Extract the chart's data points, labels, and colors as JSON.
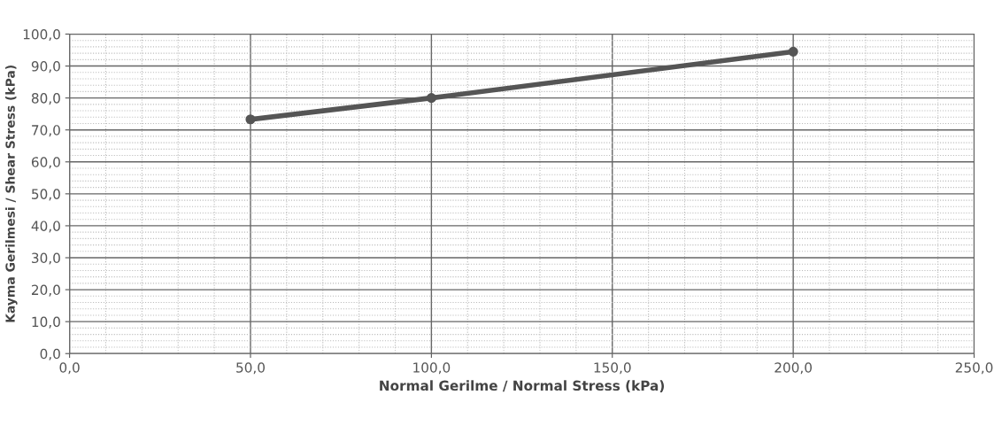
{
  "chart_data": {
    "type": "line",
    "xlabel": "Normal Gerilme / Normal Stress (kPa)",
    "ylabel": "Kayma Gerilmesi / Shear Stress (kPa)",
    "x": [
      50,
      100,
      200
    ],
    "series": [
      {
        "color": "#555555",
        "values": [
          73.3,
          80.0,
          94.5
        ]
      }
    ],
    "marker": "circle",
    "line_style": "solid",
    "grid": true,
    "xlim": [
      0,
      250
    ],
    "xticks": [
      {
        "value": 0,
        "label": "0,0"
      },
      {
        "value": 50,
        "label": "50,0"
      },
      {
        "value": 100,
        "label": "100,0"
      },
      {
        "value": 150,
        "label": "150,0"
      },
      {
        "value": 200,
        "label": "200,0"
      },
      {
        "value": 250,
        "label": "250,0"
      }
    ],
    "ylim": [
      0,
      100
    ],
    "yticks": [
      {
        "value": 0,
        "label": "0,0"
      },
      {
        "value": 10,
        "label": "10,0"
      },
      {
        "value": 20,
        "label": "20,0"
      },
      {
        "value": 30,
        "label": "30,0"
      },
      {
        "value": 40,
        "label": "40,0"
      },
      {
        "value": 50,
        "label": "50,0"
      },
      {
        "value": 60,
        "label": "60,0"
      },
      {
        "value": 70,
        "label": "70,0"
      },
      {
        "value": 80,
        "label": "80,0"
      },
      {
        "value": 90,
        "label": "90,0"
      },
      {
        "value": 100,
        "label": "100,0"
      }
    ]
  }
}
